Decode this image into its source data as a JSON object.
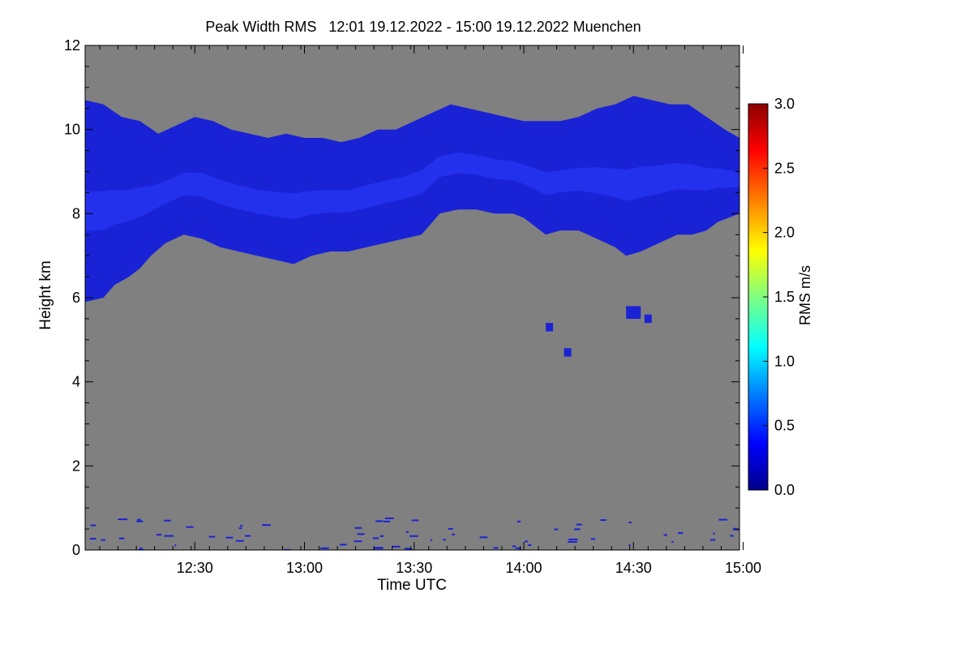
{
  "title": {
    "text": "Peak Width RMS   12:01 19.12.2022 - 15:00 19.12.2022 Muenchen"
  },
  "chart_data": {
    "type": "heatmap",
    "title": "Peak Width RMS   12:01 19.12.2022 - 15:00 19.12.2022 Muenchen",
    "xlabel": "Time UTC",
    "ylabel": "Height km",
    "x_range": [
      "12:01",
      "15:00"
    ],
    "ylim": [
      0,
      12
    ],
    "x_tick_labels": [
      "12:30",
      "13:00",
      "13:30",
      "14:00",
      "14:30",
      "15:00"
    ],
    "x_ticks_minutes": [
      30,
      60,
      90,
      120,
      150,
      180
    ],
    "y_ticks": [
      0,
      2,
      4,
      6,
      8,
      10,
      12
    ],
    "y_tick_labels": [
      "0",
      "2",
      "4",
      "6",
      "8",
      "10",
      "12"
    ],
    "background_color": "#808080",
    "colorbar": {
      "label": "RMS m/s",
      "min": 0.0,
      "max": 3.0,
      "tick_values": [
        0.0,
        0.5,
        1.0,
        1.5,
        2.0,
        2.5,
        3.0
      ],
      "tick_labels": [
        "0.0",
        "0.5",
        "1.0",
        "1.5",
        "2.0",
        "2.5",
        "3.0"
      ],
      "colormap": [
        "#00008b",
        "#0000ff",
        "#0080ff",
        "#00ffff",
        "#80ff80",
        "#ffff00",
        "#ff8000",
        "#ff0000",
        "#8b0000"
      ]
    },
    "main_layer": {
      "description_value_range_ms": [
        0.05,
        0.4
      ],
      "color": "#1a22d6",
      "highlight_color": "#2b3dff",
      "top_km": [
        [
          0,
          10.7
        ],
        [
          5,
          10.6
        ],
        [
          10,
          10.3
        ],
        [
          15,
          10.2
        ],
        [
          20,
          9.9
        ],
        [
          25,
          10.1
        ],
        [
          30,
          10.3
        ],
        [
          35,
          10.2
        ],
        [
          40,
          10.0
        ],
        [
          45,
          9.9
        ],
        [
          50,
          9.8
        ],
        [
          55,
          9.9
        ],
        [
          60,
          9.8
        ],
        [
          65,
          9.8
        ],
        [
          70,
          9.7
        ],
        [
          75,
          9.8
        ],
        [
          80,
          10.0
        ],
        [
          85,
          10.0
        ],
        [
          90,
          10.2
        ],
        [
          95,
          10.4
        ],
        [
          100,
          10.6
        ],
        [
          105,
          10.5
        ],
        [
          110,
          10.4
        ],
        [
          115,
          10.3
        ],
        [
          120,
          10.2
        ],
        [
          125,
          10.2
        ],
        [
          130,
          10.2
        ],
        [
          135,
          10.3
        ],
        [
          140,
          10.5
        ],
        [
          145,
          10.6
        ],
        [
          150,
          10.8
        ],
        [
          155,
          10.7
        ],
        [
          160,
          10.6
        ],
        [
          165,
          10.6
        ],
        [
          170,
          10.3
        ],
        [
          175,
          10.0
        ],
        [
          179,
          9.8
        ]
      ],
      "base_km": [
        [
          0,
          5.9
        ],
        [
          5,
          6.0
        ],
        [
          8,
          6.3
        ],
        [
          12,
          6.5
        ],
        [
          15,
          6.7
        ],
        [
          18,
          7.0
        ],
        [
          22,
          7.3
        ],
        [
          27,
          7.5
        ],
        [
          32,
          7.4
        ],
        [
          37,
          7.2
        ],
        [
          42,
          7.1
        ],
        [
          47,
          7.0
        ],
        [
          52,
          6.9
        ],
        [
          57,
          6.8
        ],
        [
          62,
          7.0
        ],
        [
          67,
          7.1
        ],
        [
          72,
          7.1
        ],
        [
          77,
          7.2
        ],
        [
          82,
          7.3
        ],
        [
          87,
          7.4
        ],
        [
          92,
          7.5
        ],
        [
          95,
          7.8
        ],
        [
          97,
          8.0
        ],
        [
          102,
          8.1
        ],
        [
          107,
          8.1
        ],
        [
          112,
          8.0
        ],
        [
          117,
          8.0
        ],
        [
          120,
          7.9
        ],
        [
          123,
          7.7
        ],
        [
          126,
          7.5
        ],
        [
          130,
          7.6
        ],
        [
          135,
          7.6
        ],
        [
          140,
          7.4
        ],
        [
          145,
          7.2
        ],
        [
          148,
          7.0
        ],
        [
          152,
          7.1
        ],
        [
          157,
          7.3
        ],
        [
          162,
          7.5
        ],
        [
          166,
          7.5
        ],
        [
          170,
          7.6
        ],
        [
          173,
          7.8
        ],
        [
          176,
          7.9
        ],
        [
          179,
          8.0
        ]
      ]
    },
    "secondary_features": [
      {
        "type": "isolated_cells",
        "time_min": [
          148,
          152
        ],
        "height_km": [
          5.5,
          5.8
        ]
      },
      {
        "type": "isolated_cells",
        "time_min": [
          153,
          155
        ],
        "height_km": [
          5.4,
          5.6
        ]
      },
      {
        "type": "isolated_cells",
        "time_min": [
          126,
          128
        ],
        "height_km": [
          5.2,
          5.4
        ]
      },
      {
        "type": "isolated_cells",
        "time_min": [
          131,
          133
        ],
        "height_km": [
          4.6,
          4.8
        ]
      },
      {
        "type": "near_surface_noise",
        "height_km": [
          0.0,
          0.8
        ]
      }
    ]
  }
}
